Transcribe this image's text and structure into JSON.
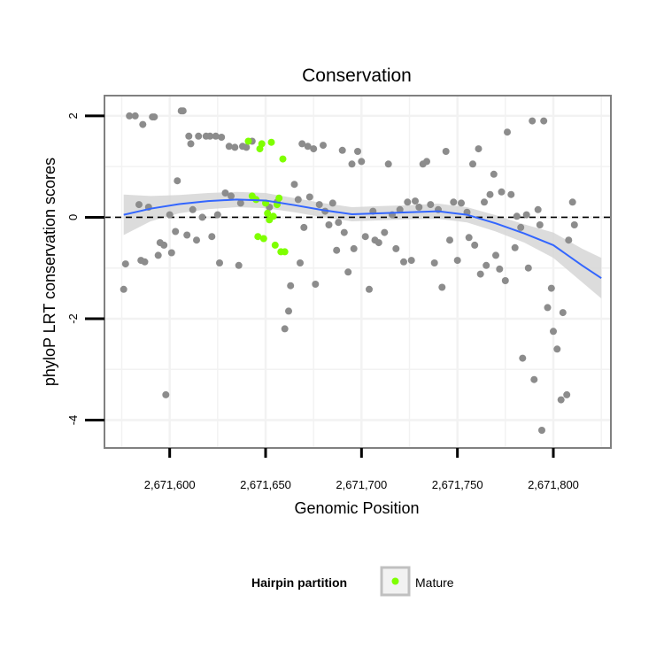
{
  "chart_data": {
    "type": "scatter",
    "title": "Conservation",
    "xlabel": "Genomic Position",
    "ylabel": "phyloP LRT conservation scores",
    "xlim": [
      2671566,
      2671830
    ],
    "ylim": [
      -4.55,
      2.4
    ],
    "x_ticks": [
      {
        "value": 2671600,
        "label": "2,671,600"
      },
      {
        "value": 2671650,
        "label": "2,671,650"
      },
      {
        "value": 2671700,
        "label": "2,671,700"
      },
      {
        "value": 2671750,
        "label": "2,671,750"
      },
      {
        "value": 2671800,
        "label": "2,671,800"
      }
    ],
    "y_ticks": [
      {
        "value": 2,
        "label": "2"
      },
      {
        "value": 0,
        "label": "0"
      },
      {
        "value": -2,
        "label": "-2"
      },
      {
        "value": -4,
        "label": "-4"
      }
    ],
    "grid": true,
    "reference_line": {
      "y": 0,
      "style": "dashed"
    },
    "colors": {
      "background": "#ffffff",
      "panel_border": "#808080",
      "grid": "#f2f2f2",
      "other_points": "#8c8c8c",
      "mature_points": "#7fff00",
      "smooth_line": "#3366ff",
      "ribbon": "#d6d6d6"
    },
    "legend": {
      "title": "Hairpin partition",
      "entries": [
        {
          "label": "Mature",
          "color": "#7fff00"
        }
      ],
      "position": "bottom"
    },
    "series": [
      {
        "name": "",
        "color": "#8c8c8c",
        "points": [
          [
            2671576,
            -1.42
          ],
          [
            2671577,
            -0.92
          ],
          [
            2671579,
            2.0
          ],
          [
            2671582,
            2.0
          ],
          [
            2671584,
            0.25
          ],
          [
            2671585,
            -0.85
          ],
          [
            2671586,
            1.83
          ],
          [
            2671587,
            -0.88
          ],
          [
            2671589,
            0.2
          ],
          [
            2671591,
            1.98
          ],
          [
            2671592,
            1.98
          ],
          [
            2671594,
            -0.75
          ],
          [
            2671595,
            -0.5
          ],
          [
            2671597,
            -0.55
          ],
          [
            2671598,
            -3.5
          ],
          [
            2671600,
            0.05
          ],
          [
            2671601,
            -0.7
          ],
          [
            2671603,
            -0.28
          ],
          [
            2671604,
            0.72
          ],
          [
            2671606,
            2.1
          ],
          [
            2671607,
            2.1
          ],
          [
            2671609,
            -0.35
          ],
          [
            2671610,
            1.6
          ],
          [
            2671611,
            1.45
          ],
          [
            2671612,
            0.15
          ],
          [
            2671614,
            -0.45
          ],
          [
            2671615,
            1.6
          ],
          [
            2671617,
            0.0
          ],
          [
            2671619,
            1.6
          ],
          [
            2671621,
            1.6
          ],
          [
            2671622,
            -0.38
          ],
          [
            2671624,
            1.6
          ],
          [
            2671625,
            0.05
          ],
          [
            2671627,
            1.58
          ],
          [
            2671626,
            -0.9
          ],
          [
            2671629,
            0.48
          ],
          [
            2671631,
            1.4
          ],
          [
            2671632,
            0.42
          ],
          [
            2671634,
            1.38
          ],
          [
            2671636,
            -0.95
          ],
          [
            2671637,
            0.28
          ],
          [
            2671638,
            1.4
          ],
          [
            2671640,
            1.38
          ],
          [
            2671643,
            1.5
          ],
          [
            2671652,
            0.2
          ],
          [
            2671656,
            0.3
          ],
          [
            2671660,
            -2.2
          ],
          [
            2671662,
            -1.85
          ],
          [
            2671663,
            -1.35
          ],
          [
            2671665,
            0.65
          ],
          [
            2671667,
            0.35
          ],
          [
            2671668,
            -0.9
          ],
          [
            2671669,
            1.45
          ],
          [
            2671670,
            -0.2
          ],
          [
            2671672,
            1.4
          ],
          [
            2671673,
            0.4
          ],
          [
            2671675,
            1.35
          ],
          [
            2671676,
            -1.32
          ],
          [
            2671678,
            0.25
          ],
          [
            2671680,
            1.42
          ],
          [
            2671681,
            0.12
          ],
          [
            2671683,
            -0.15
          ],
          [
            2671685,
            0.28
          ],
          [
            2671687,
            -0.65
          ],
          [
            2671688,
            -0.1
          ],
          [
            2671690,
            1.32
          ],
          [
            2671691,
            -0.3
          ],
          [
            2671693,
            -1.08
          ],
          [
            2671695,
            1.05
          ],
          [
            2671696,
            -0.62
          ],
          [
            2671698,
            1.3
          ],
          [
            2671700,
            1.1
          ],
          [
            2671702,
            -0.38
          ],
          [
            2671704,
            -1.42
          ],
          [
            2671706,
            0.12
          ],
          [
            2671707,
            -0.45
          ],
          [
            2671709,
            -0.5
          ],
          [
            2671712,
            -0.3
          ],
          [
            2671714,
            1.05
          ],
          [
            2671716,
            0.05
          ],
          [
            2671718,
            -0.62
          ],
          [
            2671720,
            0.15
          ],
          [
            2671722,
            -0.88
          ],
          [
            2671724,
            0.3
          ],
          [
            2671726,
            -0.85
          ],
          [
            2671728,
            0.32
          ],
          [
            2671730,
            0.2
          ],
          [
            2671732,
            1.05
          ],
          [
            2671734,
            1.1
          ],
          [
            2671736,
            0.25
          ],
          [
            2671738,
            -0.9
          ],
          [
            2671740,
            0.15
          ],
          [
            2671742,
            -1.38
          ],
          [
            2671744,
            1.3
          ],
          [
            2671746,
            -0.45
          ],
          [
            2671748,
            0.3
          ],
          [
            2671750,
            -0.85
          ],
          [
            2671752,
            0.28
          ],
          [
            2671755,
            0.1
          ],
          [
            2671756,
            -0.4
          ],
          [
            2671758,
            1.05
          ],
          [
            2671759,
            -0.55
          ],
          [
            2671761,
            1.35
          ],
          [
            2671762,
            -1.12
          ],
          [
            2671764,
            0.3
          ],
          [
            2671765,
            -0.95
          ],
          [
            2671767,
            0.45
          ],
          [
            2671769,
            0.85
          ],
          [
            2671770,
            -0.75
          ],
          [
            2671772,
            -1.02
          ],
          [
            2671773,
            0.5
          ],
          [
            2671775,
            -1.25
          ],
          [
            2671776,
            1.68
          ],
          [
            2671778,
            0.45
          ],
          [
            2671780,
            -0.6
          ],
          [
            2671781,
            0.02
          ],
          [
            2671783,
            -0.2
          ],
          [
            2671784,
            -2.78
          ],
          [
            2671786,
            0.05
          ],
          [
            2671787,
            -1.0
          ],
          [
            2671789,
            1.9
          ],
          [
            2671790,
            -3.2
          ],
          [
            2671792,
            0.15
          ],
          [
            2671793,
            -0.15
          ],
          [
            2671794,
            -4.2
          ],
          [
            2671795,
            1.9
          ],
          [
            2671797,
            -1.78
          ],
          [
            2671799,
            -1.4
          ],
          [
            2671800,
            -2.25
          ],
          [
            2671802,
            -2.6
          ],
          [
            2671804,
            -3.6
          ],
          [
            2671805,
            -1.88
          ],
          [
            2671807,
            -3.5
          ],
          [
            2671808,
            -0.45
          ],
          [
            2671810,
            0.3
          ],
          [
            2671811,
            -0.15
          ]
        ]
      },
      {
        "name": "Mature",
        "color": "#7fff00",
        "points": [
          [
            2671641,
            1.5
          ],
          [
            2671643,
            0.42
          ],
          [
            2671645,
            0.35
          ],
          [
            2671647,
            1.35
          ],
          [
            2671648,
            1.45
          ],
          [
            2671646,
            -0.38
          ],
          [
            2671649,
            -0.42
          ],
          [
            2671650,
            0.28
          ],
          [
            2671651,
            0.08
          ],
          [
            2671652,
            -0.05
          ],
          [
            2671653,
            1.48
          ],
          [
            2671654,
            0.02
          ],
          [
            2671655,
            -0.55
          ],
          [
            2671656,
            0.25
          ],
          [
            2671657,
            0.38
          ],
          [
            2671658,
            -0.68
          ],
          [
            2671659,
            1.15
          ],
          [
            2671660,
            -0.68
          ]
        ]
      }
    ],
    "smooth": {
      "name": "",
      "x": [
        2671576,
        2671590,
        2671605,
        2671620,
        2671635,
        2671650,
        2671665,
        2671680,
        2671695,
        2671710,
        2671725,
        2671740,
        2671755,
        2671770,
        2671785,
        2671800,
        2671815,
        2671825
      ],
      "y": [
        0.05,
        0.17,
        0.26,
        0.32,
        0.35,
        0.33,
        0.24,
        0.14,
        0.06,
        0.08,
        0.1,
        0.12,
        0.05,
        -0.12,
        -0.32,
        -0.55,
        -0.95,
        -1.2
      ],
      "ribbon_lower": [
        -0.35,
        -0.08,
        0.08,
        0.16,
        0.2,
        0.18,
        0.1,
        0.0,
        -0.08,
        -0.06,
        -0.04,
        -0.03,
        -0.1,
        -0.28,
        -0.5,
        -0.8,
        -1.28,
        -1.6
      ],
      "ribbon_upper": [
        0.45,
        0.42,
        0.44,
        0.48,
        0.5,
        0.48,
        0.38,
        0.28,
        0.2,
        0.22,
        0.24,
        0.27,
        0.2,
        0.04,
        -0.14,
        -0.3,
        -0.62,
        -0.8
      ]
    }
  }
}
